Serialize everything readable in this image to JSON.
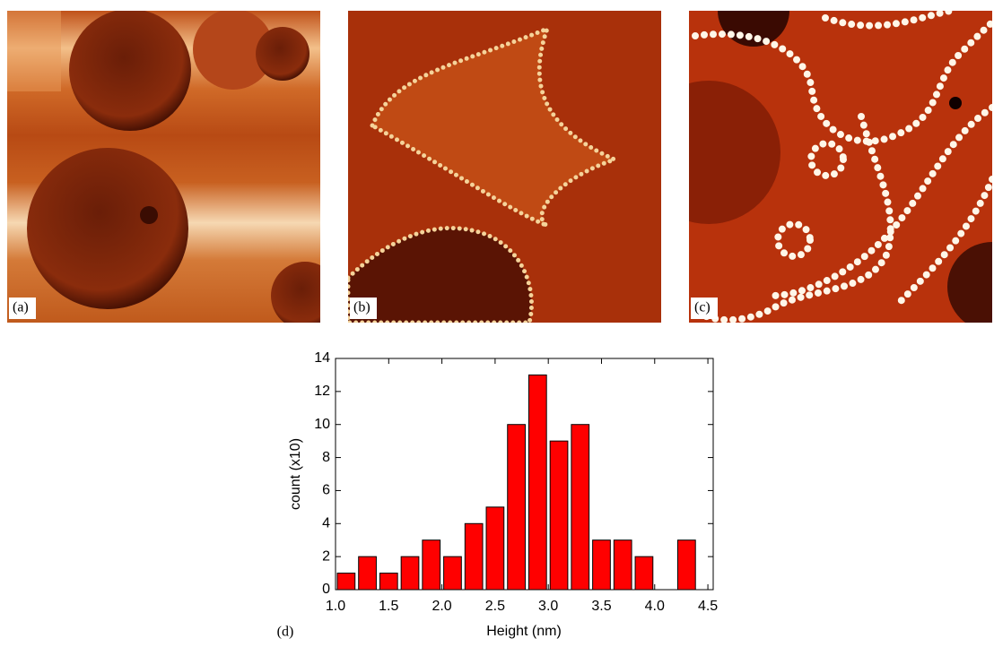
{
  "images": [
    {
      "label": "(a)"
    },
    {
      "label": "(b)"
    },
    {
      "label": "(c)"
    }
  ],
  "chart_data": {
    "type": "histogram",
    "annotation": "(d)",
    "x_label": "Height (nm)",
    "y_label": "count (x10)",
    "bins": [
      1.0,
      1.2,
      1.4,
      1.6,
      1.8,
      2.0,
      2.2,
      2.4,
      2.6,
      2.8,
      3.0,
      3.2,
      3.4,
      3.6,
      3.8,
      4.0,
      4.2,
      4.4
    ],
    "values": [
      1,
      2,
      1,
      2,
      3,
      2,
      4,
      5,
      10,
      13,
      9,
      10,
      3,
      3,
      2,
      0,
      3
    ],
    "color": "#ff0000",
    "xlim": [
      1.0,
      4.55
    ],
    "ylim": [
      0,
      14
    ],
    "xticks": [
      {
        "value": 1.0,
        "label": "1.0"
      },
      1.5,
      {
        "value": 2.0,
        "label": "2.0"
      },
      2.5,
      {
        "value": 3.0,
        "label": "3.0"
      },
      3.5,
      {
        "value": 4.0,
        "label": "4.0"
      },
      4.5
    ],
    "yticks": [
      0,
      2,
      4,
      6,
      8,
      10,
      12,
      14
    ]
  }
}
